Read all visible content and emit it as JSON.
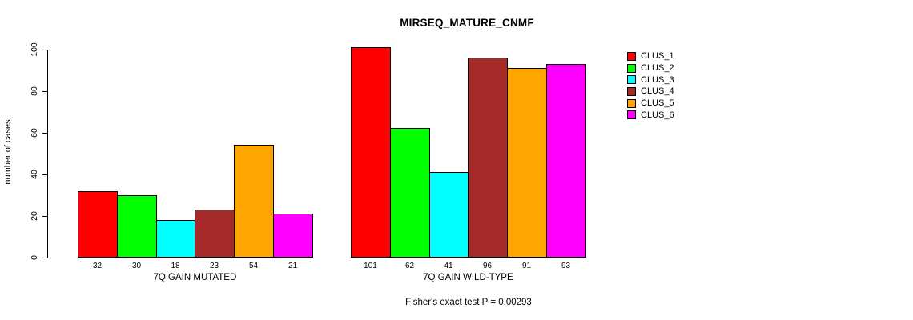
{
  "title": "MIRSEQ_MATURE_CNMF",
  "chart_data": {
    "type": "bar",
    "title": "MIRSEQ_MATURE_CNMF",
    "xlabel": "",
    "ylabel": "number of cases",
    "yticks": [
      0,
      20,
      40,
      60,
      80,
      100
    ],
    "ylim": [
      0,
      105
    ],
    "grid": false,
    "legend_position": "right",
    "categories": [
      "7Q GAIN MUTATED",
      "7Q GAIN WILD-TYPE"
    ],
    "series": [
      {
        "name": "CLUS_1",
        "color": "#FF0000",
        "values": [
          32,
          101
        ]
      },
      {
        "name": "CLUS_2",
        "color": "#00FF00",
        "values": [
          30,
          62
        ]
      },
      {
        "name": "CLUS_3",
        "color": "#00FFFF",
        "values": [
          18,
          41
        ]
      },
      {
        "name": "CLUS_4",
        "color": "#A52A2A",
        "values": [
          23,
          96
        ]
      },
      {
        "name": "CLUS_5",
        "color": "#FFA500",
        "values": [
          54,
          91
        ]
      },
      {
        "name": "CLUS_6",
        "color": "#FF00FF",
        "values": [
          21,
          93
        ]
      }
    ],
    "bar_value_labels": {
      "7Q GAIN MUTATED": [
        32,
        30,
        18,
        23,
        54,
        21
      ],
      "7Q GAIN WILD-TYPE": [
        101,
        62,
        41,
        96,
        91,
        93
      ]
    },
    "annotation": "Fisher's exact test P = 0.00293"
  },
  "legend": {
    "items": [
      {
        "label": "CLUS_1",
        "color": "#FF0000"
      },
      {
        "label": "CLUS_2",
        "color": "#00FF00"
      },
      {
        "label": "CLUS_3",
        "color": "#00FFFF"
      },
      {
        "label": "CLUS_4",
        "color": "#A52A2A"
      },
      {
        "label": "CLUS_5",
        "color": "#FFA500"
      },
      {
        "label": "CLUS_6",
        "color": "#FF00FF"
      }
    ]
  },
  "footer": "Fisher's exact test P = 0.00293"
}
